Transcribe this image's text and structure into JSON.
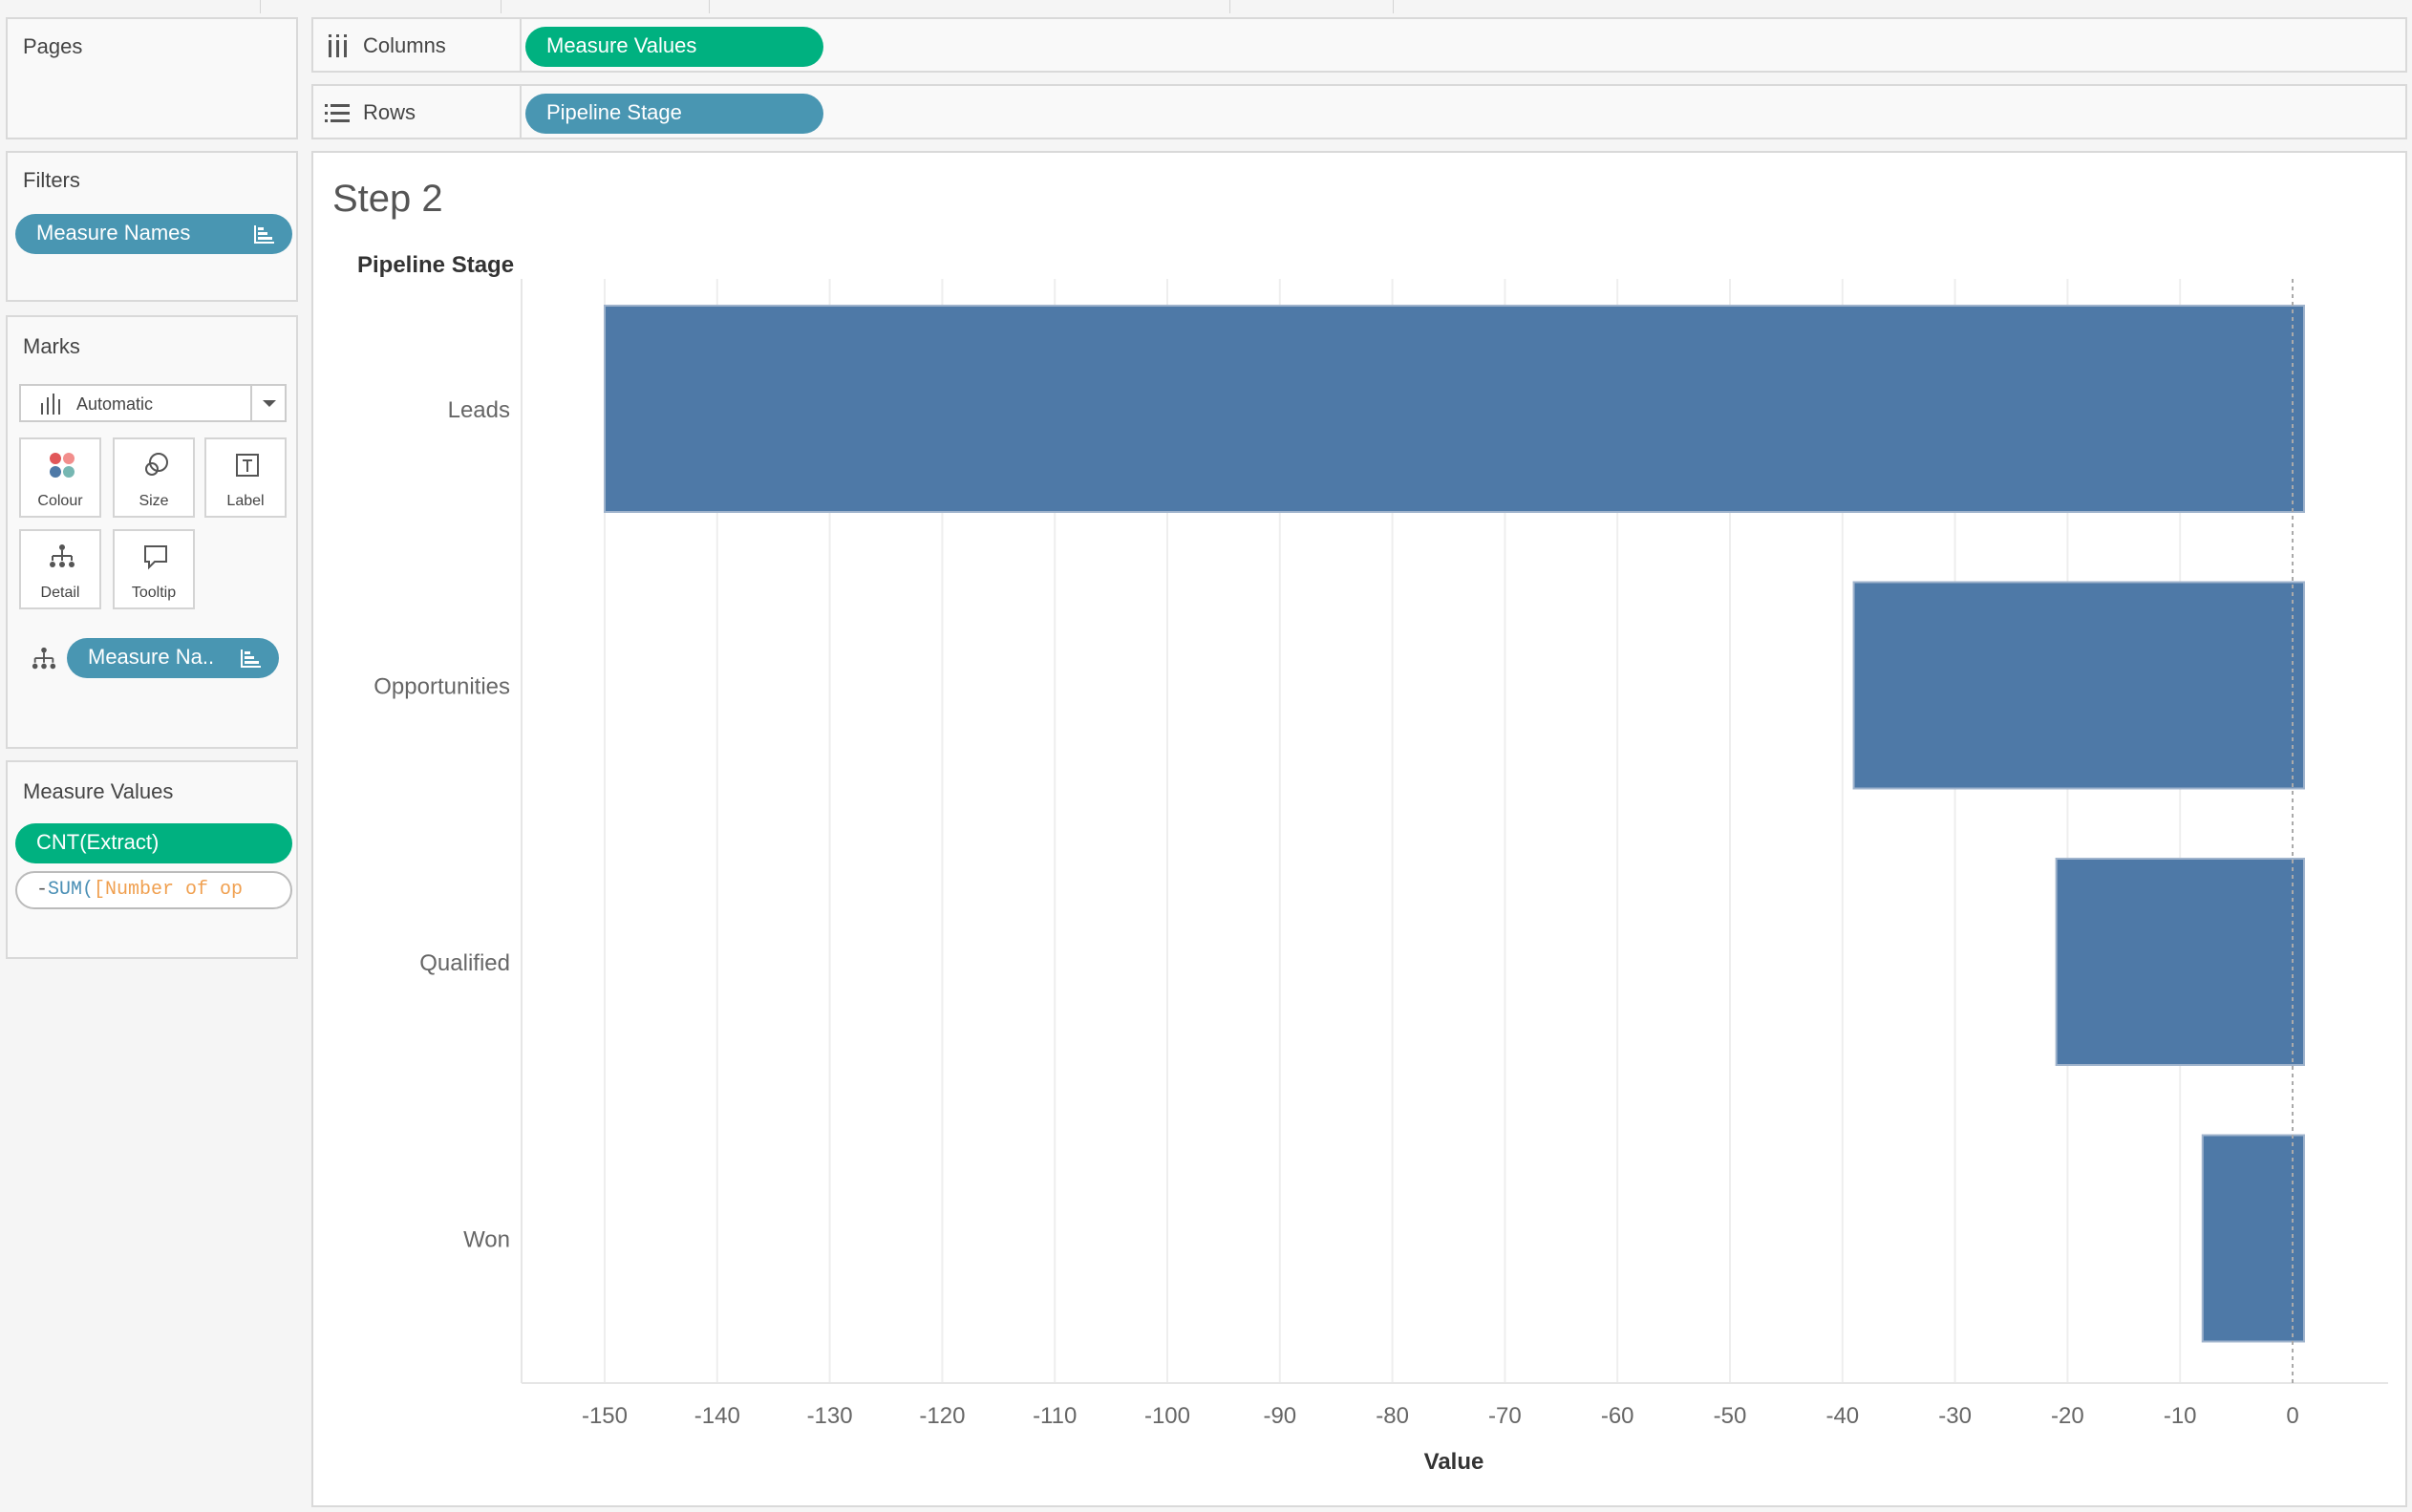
{
  "left_panel": {
    "pages": {
      "title": "Pages"
    },
    "filters": {
      "title": "Filters",
      "pill": "Measure Names"
    },
    "marks": {
      "title": "Marks",
      "mark_type": "Automatic",
      "buttons": [
        {
          "label": "Colour",
          "icon": "colour-icon"
        },
        {
          "label": "Size",
          "icon": "size-icon"
        },
        {
          "label": "Label",
          "icon": "label-icon"
        },
        {
          "label": "Detail",
          "icon": "detail-icon"
        },
        {
          "label": "Tooltip",
          "icon": "tooltip-icon"
        }
      ],
      "detail_pill": "Measure Na.."
    },
    "measure_values": {
      "title": "Measure Values",
      "pill_1": "CNT(Extract)",
      "pill_2_prefix": "-",
      "pill_2_func": "SUM(",
      "pill_2_field": "[Number of op"
    }
  },
  "shelves": {
    "columns": {
      "label": "Columns",
      "pill": "Measure Values"
    },
    "rows": {
      "label": "Rows",
      "pill": "Pipeline Stage"
    }
  },
  "view": {
    "title": "Step 2",
    "row_header": "Pipeline Stage"
  },
  "colors": {
    "bar": "#4e79a7",
    "blue_pill": "#4996b2",
    "green_pill": "#00b180"
  },
  "chart_data": {
    "type": "bar",
    "orientation": "horizontal",
    "categories": [
      "Leads",
      "Opportunities",
      "Qualified",
      "Won"
    ],
    "values": [
      -150,
      -39,
      -21,
      -8
    ],
    "xlabel": "Value",
    "ylabel": "Pipeline Stage",
    "xlim": [
      -157,
      1
    ],
    "xticks": [
      -150,
      -140,
      -130,
      -120,
      -110,
      -100,
      -90,
      -80,
      -70,
      -60,
      -50,
      -40,
      -30,
      -20,
      -10,
      0
    ],
    "grid": true
  }
}
